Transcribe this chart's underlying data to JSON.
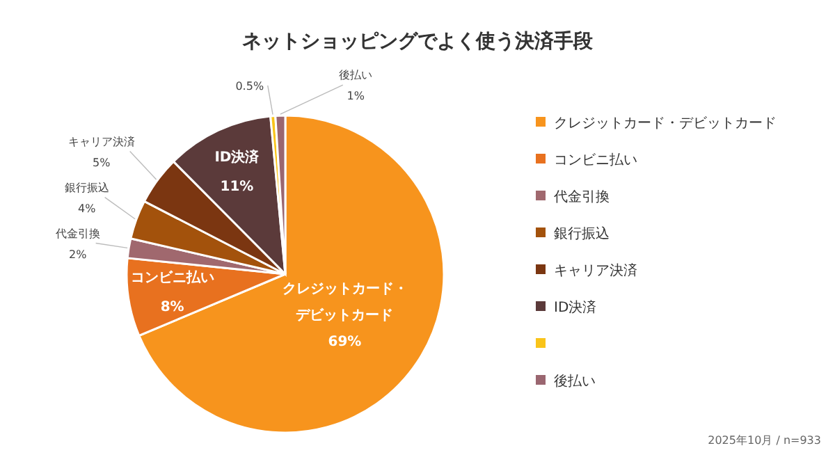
{
  "chart_data": {
    "type": "pie",
    "title": "ネットショッピングでよく使う決済手段",
    "categories": [
      "クレジットカード・デビットカード",
      "コンビニ払い",
      "代金引換",
      "銀行振込",
      "キャリア決済",
      "ID決済",
      null,
      "後払い"
    ],
    "values": [
      69,
      8,
      2,
      4,
      5,
      11,
      0.5,
      1
    ],
    "value_labels": [
      "69%",
      "8%",
      "2%",
      "4%",
      "5%",
      "11%",
      "0.5%",
      "1%"
    ],
    "colors": [
      "#f7941d",
      "#e8711f",
      "#a0686e",
      "#a3520c",
      "#7b3611",
      "#5b3a3a",
      "#f9c41a",
      "#9a6670"
    ],
    "legend": "right",
    "annotations": [
      "2025年10月 / n=933"
    ]
  }
}
